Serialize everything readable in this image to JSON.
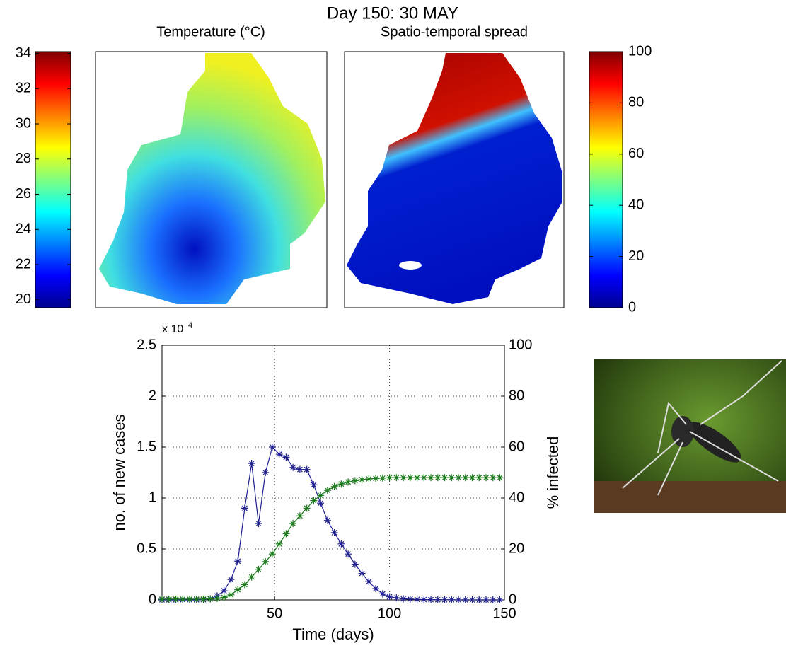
{
  "title": "Day 150: 30 MAY",
  "chart_data": [
    {
      "type": "colorbar",
      "title": "Temperature (°C)",
      "ylim": [
        19.55,
        34.1
      ],
      "yticks": [
        20,
        22,
        24,
        26,
        28,
        30,
        32,
        34
      ],
      "colormap": "jet"
    },
    {
      "type": "colorbar",
      "title": "Spatio-temporal spread",
      "ylim": [
        0,
        100
      ],
      "yticks": [
        0,
        20,
        40,
        60,
        80,
        100
      ],
      "colormap": "jet"
    },
    {
      "type": "line",
      "xlabel": "Time (days)",
      "ylabel": "no. of new cases",
      "y2label": "% infected",
      "y_scale_label": "x 10",
      "y_scale_exponent": "4",
      "x": [
        1,
        4,
        7,
        10,
        13,
        16,
        19,
        22,
        25,
        28,
        31,
        34,
        37,
        40,
        43,
        46,
        49,
        52,
        55,
        58,
        61,
        64,
        67,
        70,
        73,
        76,
        79,
        82,
        85,
        88,
        91,
        94,
        97,
        100,
        103,
        106,
        109,
        112,
        115,
        118,
        121,
        124,
        127,
        130,
        133,
        136,
        139,
        142,
        145,
        148
      ],
      "series": [
        {
          "name": "no. of new cases",
          "color": "#1f1f8f",
          "axis": "y",
          "values": [
            0,
            0,
            0,
            0,
            0,
            0,
            20,
            100,
            400,
            900,
            2000,
            3800,
            9000,
            13400,
            7500,
            12500,
            15000,
            14300,
            14000,
            13000,
            12800,
            12800,
            11300,
            9500,
            7800,
            6600,
            5500,
            4500,
            3500,
            2600,
            1800,
            1100,
            600,
            300,
            200,
            100,
            80,
            50,
            30,
            20,
            20,
            10,
            10,
            0,
            0,
            0,
            0,
            0,
            0,
            0
          ]
        },
        {
          "name": "% infected",
          "color": "#1a7a1a",
          "axis": "y2",
          "values": [
            0.3,
            0.3,
            0.3,
            0.3,
            0.3,
            0.3,
            0.3,
            0.4,
            0.6,
            1,
            2,
            4,
            6,
            9,
            12,
            15,
            18,
            22,
            26,
            30,
            33,
            36,
            39,
            41,
            43,
            44.5,
            45.5,
            46.3,
            46.8,
            47.2,
            47.5,
            47.7,
            47.8,
            48,
            48,
            48,
            48,
            48,
            48,
            48,
            48,
            48,
            48,
            48,
            48,
            48,
            48,
            48,
            48,
            48
          ]
        }
      ],
      "xlim": [
        1,
        150
      ],
      "xticks": [
        50,
        100,
        150
      ],
      "ylim": [
        0,
        25000
      ],
      "yticks": [
        {
          "value": 0,
          "label": "0"
        },
        {
          "value": 5000,
          "label": "0.5"
        },
        {
          "value": 10000,
          "label": "1"
        },
        {
          "value": 15000,
          "label": "1.5"
        },
        {
          "value": 20000,
          "label": "2"
        },
        {
          "value": 25000,
          "label": "2.5"
        }
      ],
      "y2lim": [
        0,
        100
      ],
      "y2ticks": [
        0,
        20,
        40,
        60,
        80,
        100
      ],
      "grid": true
    }
  ]
}
